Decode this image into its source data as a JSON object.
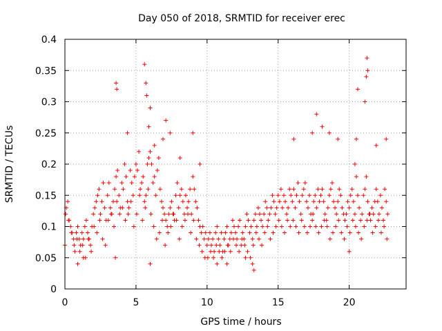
{
  "chart_data": {
    "type": "scatter",
    "title": "Day 050 of 2018, SRMTID for receiver erec",
    "xlabel": "GPS time / hours",
    "ylabel": "SRMTID / TECUs",
    "xlim": [
      0,
      24
    ],
    "ylim": [
      0,
      0.4
    ],
    "x_ticks": [
      0,
      5,
      10,
      15,
      20
    ],
    "x_tick_labels": [
      "0",
      "5",
      "10",
      "15",
      "20"
    ],
    "y_ticks": [
      0,
      0.05,
      0.1,
      0.15,
      0.2,
      0.25,
      0.3,
      0.35,
      0.4
    ],
    "y_tick_labels": [
      "0",
      "0.05",
      "0.1",
      "0.15",
      "0.2",
      "0.25",
      "0.3",
      "0.35",
      "0.4"
    ],
    "grid": true,
    "marker": "+",
    "series": [
      {
        "name": "SRMTID",
        "color": "#ff0000",
        "x": [
          0.0,
          0.1,
          0.2,
          0.3,
          0.4,
          0.5,
          0.6,
          0.7,
          0.8,
          0.9,
          1.0,
          1.1,
          1.2,
          1.3,
          1.4,
          1.5,
          1.6,
          1.7,
          1.8,
          1.9,
          2.0,
          2.1,
          2.2,
          2.3,
          2.4,
          2.5,
          2.6,
          2.7,
          2.8,
          2.9,
          3.0,
          3.1,
          3.2,
          3.3,
          3.4,
          3.5,
          3.6,
          3.7,
          3.8,
          3.9,
          4.0,
          4.1,
          4.2,
          4.3,
          4.4,
          4.5,
          4.6,
          4.7,
          4.8,
          4.9,
          5.0,
          5.1,
          5.2,
          5.3,
          5.4,
          5.5,
          5.6,
          5.7,
          5.8,
          5.9,
          6.0,
          6.1,
          6.2,
          6.3,
          6.4,
          6.5,
          6.6,
          6.7,
          6.8,
          6.9,
          7.0,
          7.1,
          7.2,
          7.3,
          7.4,
          7.5,
          7.6,
          7.7,
          7.8,
          7.9,
          8.0,
          8.1,
          8.2,
          8.3,
          8.4,
          8.5,
          8.6,
          8.7,
          8.8,
          8.9,
          9.0,
          9.1,
          9.2,
          9.3,
          9.4,
          9.5,
          9.6,
          9.7,
          9.8,
          9.9,
          10.0,
          10.1,
          10.2,
          10.3,
          10.4,
          10.5,
          10.6,
          10.7,
          10.8,
          10.9,
          11.0,
          11.1,
          11.2,
          11.3,
          11.4,
          11.5,
          11.6,
          11.7,
          11.8,
          11.9,
          12.0,
          12.1,
          12.2,
          12.3,
          12.4,
          12.5,
          12.6,
          12.7,
          12.8,
          12.9,
          13.0,
          13.1,
          13.2,
          13.3,
          13.4,
          13.5,
          13.6,
          13.7,
          13.8,
          13.9,
          14.0,
          14.1,
          14.2,
          14.3,
          14.4,
          14.5,
          14.6,
          14.7,
          14.8,
          14.9,
          15.0,
          15.1,
          15.2,
          15.3,
          15.4,
          15.5,
          15.6,
          15.7,
          15.8,
          15.9,
          16.0,
          16.1,
          16.2,
          16.3,
          16.4,
          16.5,
          16.6,
          16.7,
          16.8,
          16.9,
          17.0,
          17.1,
          17.2,
          17.3,
          17.4,
          17.5,
          17.6,
          17.7,
          17.8,
          17.9,
          18.0,
          18.1,
          18.2,
          18.3,
          18.4,
          18.5,
          18.6,
          18.7,
          18.8,
          18.9,
          19.0,
          19.1,
          19.2,
          19.3,
          19.4,
          19.5,
          19.6,
          19.7,
          19.8,
          19.9,
          20.0,
          20.1,
          20.2,
          20.3,
          20.4,
          20.5,
          20.6,
          20.7,
          20.8,
          20.9,
          21.0,
          21.1,
          21.2,
          21.3,
          21.4,
          21.5,
          21.6,
          21.7,
          21.8,
          21.9,
          22.0,
          22.1,
          22.2,
          22.3,
          22.4,
          22.5,
          22.6,
          22.7,
          0.05,
          0.25,
          0.45,
          0.65,
          0.85,
          1.05,
          1.25,
          1.45,
          1.65,
          1.85,
          2.05,
          2.25,
          2.45,
          2.65,
          2.85,
          3.05,
          3.25,
          3.45,
          3.65,
          3.85,
          4.05,
          4.25,
          4.45,
          4.65,
          4.85,
          5.05,
          5.25,
          5.45,
          5.65,
          5.85,
          6.05,
          6.25,
          6.45,
          6.65,
          6.85,
          7.05,
          7.25,
          7.45,
          7.65,
          7.85,
          8.05,
          8.25,
          8.45,
          8.65,
          8.85,
          9.05,
          9.25,
          9.45,
          9.65,
          9.85,
          10.05,
          10.25,
          10.45,
          10.65,
          10.85,
          11.05,
          11.25,
          11.45,
          11.65,
          11.85,
          12.05,
          12.25,
          12.45,
          12.65,
          12.85,
          13.05,
          13.25,
          13.45,
          13.65,
          13.85,
          14.05,
          14.25,
          14.45,
          14.65,
          14.85,
          15.05,
          15.25,
          15.45,
          15.65,
          15.85,
          16.05,
          16.25,
          16.45,
          16.65,
          16.85,
          17.05,
          17.25,
          17.45,
          17.65,
          17.85,
          18.05,
          18.25,
          18.45,
          18.65,
          18.85,
          19.05,
          19.25,
          19.45,
          19.65,
          19.85,
          20.05,
          20.25,
          20.45,
          20.65,
          20.85,
          21.05,
          21.25,
          21.45,
          21.65,
          21.85,
          22.05,
          22.25,
          22.45,
          22.65,
          3.6,
          3.65,
          5.6,
          5.7,
          5.75,
          6.0,
          7.1,
          9.0,
          16.1,
          17.7,
          18.1,
          18.6,
          20.4,
          20.5,
          20.6,
          21.1,
          21.2,
          21.25,
          21.3,
          22.6,
          3.55,
          4.4,
          5.9,
          6.3,
          6.9,
          7.4,
          8.1,
          13.2,
          17.4,
          19.2,
          20.0,
          21.9,
          0.9,
          1.3,
          10.7,
          11.4,
          12.7,
          13.3,
          6.0,
          9.5
        ],
        "y": [
          0.07,
          0.13,
          0.14,
          0.11,
          0.1,
          0.09,
          0.08,
          0.06,
          0.09,
          0.1,
          0.08,
          0.07,
          0.09,
          0.08,
          0.1,
          0.11,
          0.09,
          0.08,
          0.07,
          0.1,
          0.12,
          0.13,
          0.14,
          0.15,
          0.16,
          0.12,
          0.14,
          0.17,
          0.13,
          0.11,
          0.15,
          0.17,
          0.13,
          0.12,
          0.14,
          0.16,
          0.18,
          0.19,
          0.15,
          0.13,
          0.17,
          0.16,
          0.2,
          0.18,
          0.14,
          0.13,
          0.19,
          0.17,
          0.15,
          0.18,
          0.2,
          0.19,
          0.22,
          0.16,
          0.17,
          0.18,
          0.14,
          0.15,
          0.2,
          0.21,
          0.22,
          0.2,
          0.17,
          0.18,
          0.15,
          0.19,
          0.21,
          0.16,
          0.14,
          0.13,
          0.12,
          0.11,
          0.1,
          0.12,
          0.13,
          0.14,
          0.12,
          0.11,
          0.15,
          0.17,
          0.13,
          0.15,
          0.16,
          0.14,
          0.12,
          0.15,
          0.13,
          0.14,
          0.16,
          0.12,
          0.18,
          0.16,
          0.14,
          0.13,
          0.11,
          0.1,
          0.09,
          0.1,
          0.08,
          0.09,
          0.07,
          0.08,
          0.09,
          0.07,
          0.08,
          0.06,
          0.09,
          0.1,
          0.08,
          0.07,
          0.09,
          0.06,
          0.08,
          0.09,
          0.1,
          0.07,
          0.08,
          0.09,
          0.11,
          0.1,
          0.09,
          0.08,
          0.1,
          0.11,
          0.07,
          0.09,
          0.08,
          0.1,
          0.12,
          0.11,
          0.09,
          0.1,
          0.08,
          0.11,
          0.12,
          0.1,
          0.13,
          0.12,
          0.11,
          0.1,
          0.12,
          0.14,
          0.13,
          0.11,
          0.12,
          0.13,
          0.15,
          0.14,
          0.12,
          0.13,
          0.15,
          0.14,
          0.16,
          0.13,
          0.15,
          0.14,
          0.12,
          0.13,
          0.16,
          0.15,
          0.14,
          0.16,
          0.13,
          0.15,
          0.17,
          0.14,
          0.12,
          0.15,
          0.16,
          0.17,
          0.14,
          0.13,
          0.15,
          0.12,
          0.11,
          0.14,
          0.15,
          0.13,
          0.16,
          0.14,
          0.15,
          0.16,
          0.14,
          0.12,
          0.11,
          0.13,
          0.15,
          0.16,
          0.17,
          0.14,
          0.13,
          0.12,
          0.14,
          0.16,
          0.15,
          0.13,
          0.12,
          0.11,
          0.12,
          0.14,
          0.13,
          0.15,
          0.16,
          0.14,
          0.12,
          0.18,
          0.15,
          0.13,
          0.11,
          0.12,
          0.15,
          0.16,
          0.18,
          0.14,
          0.12,
          0.11,
          0.13,
          0.12,
          0.14,
          0.16,
          0.14,
          0.12,
          0.15,
          0.13,
          0.11,
          0.16,
          0.14,
          0.12,
          0.12,
          0.11,
          0.09,
          0.07,
          0.08,
          0.06,
          0.07,
          0.05,
          0.08,
          0.06,
          0.1,
          0.09,
          0.11,
          0.08,
          0.07,
          0.11,
          0.12,
          0.1,
          0.14,
          0.12,
          0.13,
          0.11,
          0.12,
          0.14,
          0.1,
          0.12,
          0.15,
          0.11,
          0.13,
          0.16,
          0.12,
          0.1,
          0.08,
          0.09,
          0.11,
          0.07,
          0.09,
          0.1,
          0.12,
          0.11,
          0.08,
          0.1,
          0.11,
          0.12,
          0.09,
          0.11,
          0.08,
          0.07,
          0.06,
          0.05,
          0.05,
          0.06,
          0.05,
          0.07,
          0.06,
          0.05,
          0.06,
          0.07,
          0.06,
          0.08,
          0.07,
          0.06,
          0.08,
          0.07,
          0.06,
          0.05,
          0.07,
          0.09,
          0.08,
          0.07,
          0.09,
          0.1,
          0.08,
          0.09,
          0.1,
          0.11,
          0.1,
          0.09,
          0.11,
          0.1,
          0.11,
          0.1,
          0.09,
          0.11,
          0.1,
          0.09,
          0.1,
          0.12,
          0.1,
          0.09,
          0.1,
          0.11,
          0.1,
          0.08,
          0.09,
          0.1,
          0.11,
          0.09,
          0.08,
          0.1,
          0.09,
          0.11,
          0.1,
          0.09,
          0.08,
          0.1,
          0.11,
          0.12,
          0.09,
          0.1,
          0.11,
          0.09,
          0.1,
          0.08,
          0.33,
          0.32,
          0.36,
          0.33,
          0.31,
          0.29,
          0.27,
          0.25,
          0.24,
          0.28,
          0.26,
          0.25,
          0.2,
          0.24,
          0.32,
          0.3,
          0.34,
          0.37,
          0.35,
          0.24,
          0.05,
          0.25,
          0.26,
          0.23,
          0.24,
          0.25,
          0.21,
          0.04,
          0.25,
          0.24,
          0.06,
          0.23,
          0.04,
          0.05,
          0.04,
          0.04,
          0.05,
          0.03,
          0.04,
          0.2
        ]
      }
    ]
  }
}
